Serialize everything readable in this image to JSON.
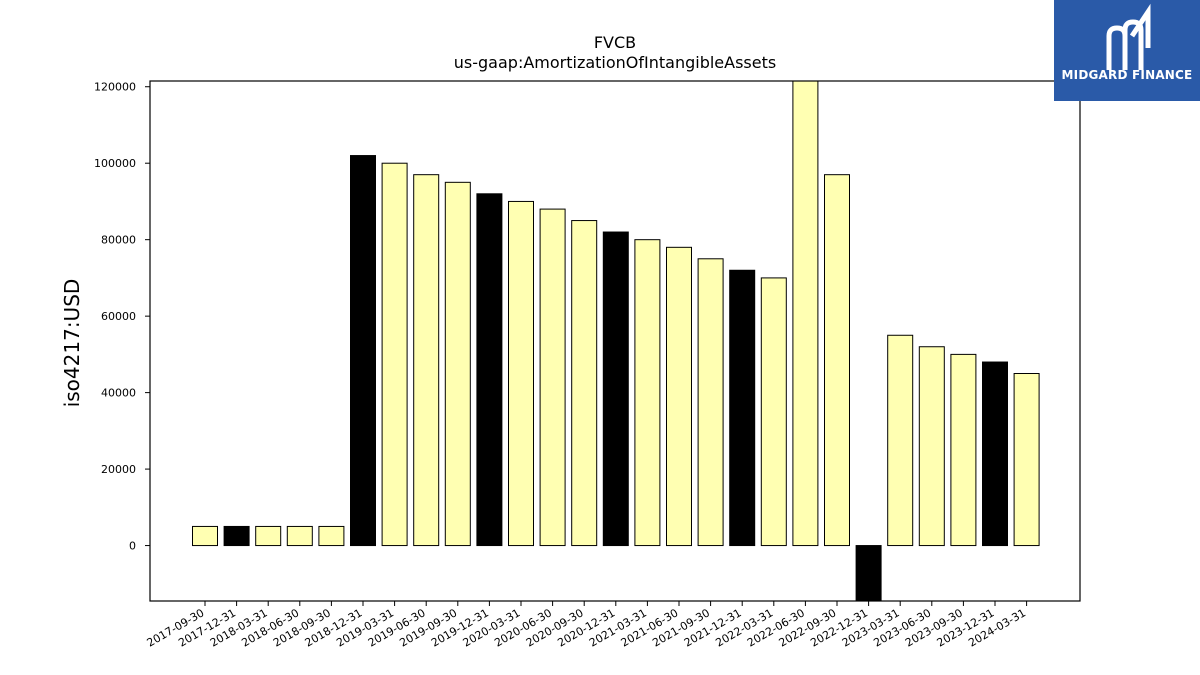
{
  "logo": {
    "text": "MIDGARD FINANCE",
    "background": "#2a5aa8"
  },
  "chart_data": {
    "type": "bar",
    "title": "FVCB",
    "subtitle": "us-gaap:AmortizationOfIntangibleAssets",
    "xlabel": "",
    "ylabel": "iso4217:USD",
    "ylim": [
      -14500,
      121500
    ],
    "yticks": [
      0,
      20000,
      40000,
      60000,
      80000,
      100000,
      120000
    ],
    "grid": false,
    "categories": [
      "2017-09-30",
      "2017-12-31",
      "2018-03-31",
      "2018-06-30",
      "2018-09-30",
      "2018-12-31",
      "2019-03-31",
      "2019-06-30",
      "2019-09-30",
      "2019-12-31",
      "2020-03-31",
      "2020-06-30",
      "2020-09-30",
      "2020-12-31",
      "2021-03-31",
      "2021-06-30",
      "2021-09-30",
      "2021-12-31",
      "2022-03-31",
      "2022-06-30",
      "2022-09-30",
      "2022-12-31",
      "2023-03-31",
      "2023-06-30",
      "2023-09-30",
      "2023-12-31",
      "2024-03-31"
    ],
    "values": [
      5000,
      5000,
      5000,
      5000,
      5000,
      102000,
      100000,
      97000,
      95000,
      92000,
      90000,
      88000,
      85000,
      82000,
      80000,
      78000,
      75000,
      72000,
      70000,
      122000,
      97000,
      -15000,
      55000,
      52000,
      50000,
      48000,
      45000
    ],
    "bar_colors": [
      "#ffffb2",
      "#000000",
      "#ffffb2",
      "#ffffb2",
      "#ffffb2",
      "#000000",
      "#ffffb2",
      "#ffffb2",
      "#ffffb2",
      "#000000",
      "#ffffb2",
      "#ffffb2",
      "#ffffb2",
      "#000000",
      "#ffffb2",
      "#ffffb2",
      "#ffffb2",
      "#000000",
      "#ffffb2",
      "#ffffb2",
      "#ffffb2",
      "#000000",
      "#ffffb2",
      "#ffffb2",
      "#ffffb2",
      "#000000",
      "#ffffb2"
    ]
  }
}
